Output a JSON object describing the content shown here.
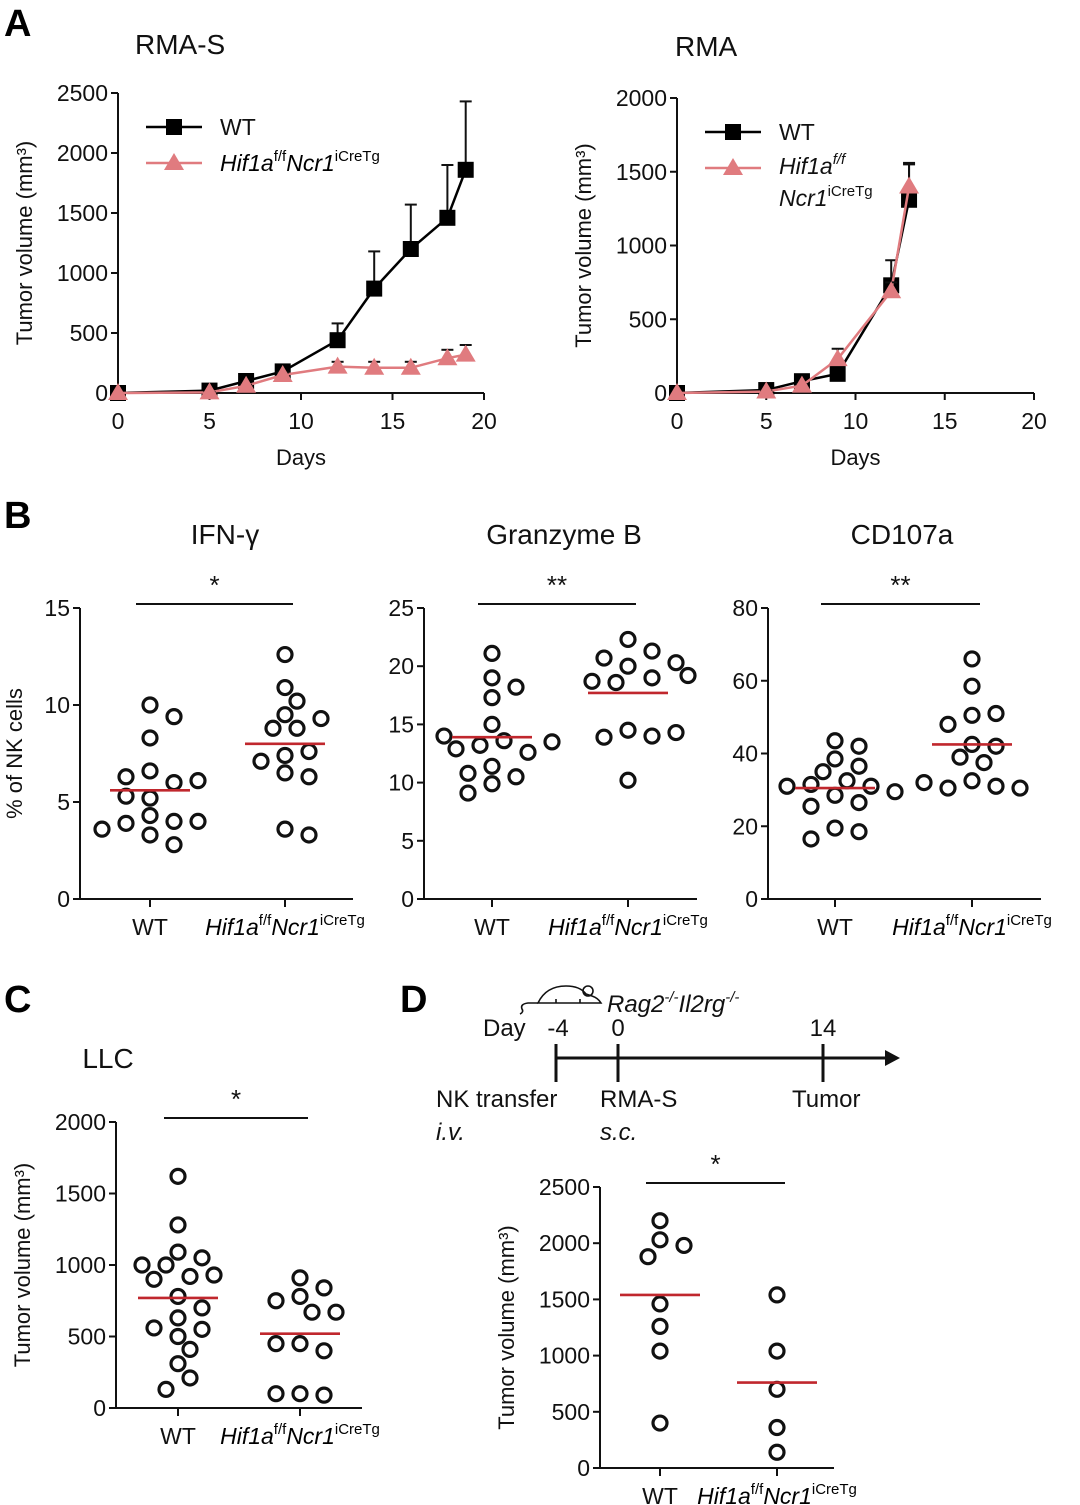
{
  "panels": {
    "A": {
      "letter": "A"
    },
    "B": {
      "letter": "B",
      "ylabel": "% of NK cells"
    },
    "C": {
      "letter": "C"
    },
    "D": {
      "letter": "D"
    }
  },
  "genotype_label": {
    "main": "Hif1a",
    "sup1": "f/f",
    "main2": "Ncr1",
    "sup2": "iCreTg"
  },
  "colors": {
    "wt": "#000000",
    "ko": "#e07b7f",
    "mean_line": "#c0272d"
  },
  "timeline": {
    "day_label": "Day",
    "mouse_strain": {
      "main": "Rag2",
      "sup1": "-/-",
      "main2": "Il2rg",
      "sup2": "-/-"
    },
    "events": [
      {
        "day": "-4",
        "label": "NK transfer",
        "route": "i.v."
      },
      {
        "day": "0",
        "label": "RMA-S",
        "route": "s.c."
      },
      {
        "day": "14",
        "label": "Tumor",
        "route": ""
      }
    ]
  },
  "chart_data": [
    {
      "id": "A-RMA-S",
      "type": "line",
      "title": "RMA-S",
      "xlabel": "Days",
      "ylabel": "Tumor volume (mm³)",
      "xlim": [
        0,
        20
      ],
      "ylim": [
        0,
        2500
      ],
      "xticks": [
        0,
        5,
        10,
        15,
        20
      ],
      "yticks": [
        0,
        500,
        1000,
        1500,
        2000,
        2500
      ],
      "legend": "top-left",
      "series": [
        {
          "name": "WT",
          "marker": "square",
          "color": "#000000",
          "x": [
            0,
            5,
            7,
            9,
            12,
            14,
            16,
            18,
            19
          ],
          "y": [
            0,
            20,
            100,
            180,
            440,
            870,
            1200,
            1460,
            1860
          ],
          "err": [
            0,
            10,
            20,
            30,
            140,
            310,
            370,
            440,
            570
          ]
        },
        {
          "name": "Hif1a f/f Ncr1 iCreTg",
          "marker": "triangle",
          "color": "#e07b7f",
          "x": [
            0,
            5,
            7,
            9,
            12,
            14,
            16,
            18,
            19
          ],
          "y": [
            0,
            5,
            60,
            150,
            220,
            210,
            210,
            290,
            320
          ],
          "err": [
            0,
            5,
            10,
            20,
            40,
            50,
            50,
            70,
            80
          ]
        }
      ]
    },
    {
      "id": "A-RMA",
      "type": "line",
      "title": "RMA",
      "xlabel": "Days",
      "ylabel": "Tumor volume (mm³)",
      "xlim": [
        0,
        20
      ],
      "ylim": [
        0,
        2000
      ],
      "xticks": [
        0,
        5,
        10,
        15,
        20
      ],
      "yticks": [
        0,
        500,
        1000,
        1500,
        2000
      ],
      "legend": "top-left",
      "series": [
        {
          "name": "WT",
          "marker": "square",
          "color": "#000000",
          "x": [
            0,
            5,
            7,
            9,
            12,
            13
          ],
          "y": [
            0,
            20,
            80,
            130,
            730,
            1310
          ],
          "err": [
            0,
            5,
            10,
            20,
            170,
            250
          ]
        },
        {
          "name": "Hif1a f/f Ncr1 iCreTg",
          "marker": "triangle",
          "color": "#e07b7f",
          "x": [
            0,
            5,
            7,
            9,
            12,
            13
          ],
          "y": [
            0,
            10,
            50,
            230,
            690,
            1400
          ],
          "err": [
            0,
            5,
            10,
            70,
            60,
            150
          ]
        }
      ]
    },
    {
      "id": "B-IFNg",
      "type": "scatter",
      "title": "IFN-γ",
      "ylabel": "% of NK cells",
      "ylim": [
        0,
        15
      ],
      "yticks": [
        0,
        5,
        10,
        15
      ],
      "categories": [
        "WT",
        "Hif1a f/f Ncr1 iCreTg"
      ],
      "significance": "*",
      "groups": [
        {
          "name": "WT",
          "mean": 5.6,
          "points": [
            10.0,
            9.4,
            8.3,
            6.6,
            6.0,
            6.3,
            6.1,
            5.2,
            5.3,
            4.3,
            4.0,
            3.9,
            4.0,
            3.6,
            3.3,
            2.8
          ]
        },
        {
          "name": "Hif1a f/f Ncr1 iCreTg",
          "mean": 8.0,
          "points": [
            12.6,
            10.9,
            10.2,
            9.5,
            8.8,
            8.8,
            9.3,
            7.4,
            7.6,
            7.1,
            6.5,
            6.3,
            3.6,
            3.3
          ]
        }
      ]
    },
    {
      "id": "B-GranzymeB",
      "type": "scatter",
      "title": "Granzyme B",
      "ylim": [
        0,
        25
      ],
      "yticks": [
        0,
        5,
        10,
        15,
        20,
        25
      ],
      "categories": [
        "WT",
        "Hif1a f/f Ncr1 iCreTg"
      ],
      "significance": "**",
      "groups": [
        {
          "name": "WT",
          "mean": 13.9,
          "points": [
            21.1,
            19.0,
            18.2,
            17.3,
            15.0,
            13.6,
            13.2,
            12.6,
            12.9,
            13.5,
            14.0,
            11.4,
            10.5,
            10.8,
            9.9,
            9.1
          ]
        },
        {
          "name": "Hif1a f/f Ncr1 iCreTg",
          "mean": 17.7,
          "points": [
            22.3,
            21.3,
            20.0,
            20.7,
            20.3,
            19.0,
            18.6,
            18.7,
            19.2,
            14.5,
            14.0,
            13.9,
            14.3,
            10.2
          ]
        }
      ]
    },
    {
      "id": "B-CD107a",
      "type": "scatter",
      "title": "CD107a",
      "ylim": [
        0,
        80
      ],
      "yticks": [
        0,
        20,
        40,
        60,
        80
      ],
      "categories": [
        "WT",
        "Hif1a f/f Ncr1 iCreTg"
      ],
      "significance": "**",
      "groups": [
        {
          "name": "WT",
          "mean": 30.5,
          "points": [
            43.5,
            42.0,
            38.5,
            36.5,
            35.0,
            32.5,
            31.5,
            31.0,
            31.0,
            29.5,
            28.5,
            26.5,
            25.5,
            19.5,
            18.5,
            16.5
          ]
        },
        {
          "name": "Hif1a f/f Ncr1 iCreTg",
          "mean": 42.5,
          "points": [
            66.0,
            58.5,
            50.5,
            51.0,
            48.0,
            42.5,
            42.0,
            39.0,
            37.5,
            32.5,
            31.0,
            30.5,
            30.5,
            32.0
          ]
        }
      ]
    },
    {
      "id": "C-LLC",
      "type": "scatter",
      "title": "LLC",
      "ylabel": "Tumor volume (mm³)",
      "ylim": [
        0,
        2000
      ],
      "yticks": [
        0,
        500,
        1000,
        1500,
        2000
      ],
      "categories": [
        "WT",
        "Hif1a f/f Ncr1 iCreTg"
      ],
      "significance": "*",
      "groups": [
        {
          "name": "WT",
          "mean": 770,
          "points": [
            1620,
            1280,
            1090,
            1050,
            1000,
            1000,
            920,
            900,
            930,
            780,
            700,
            630,
            550,
            500,
            560,
            410,
            310,
            210,
            130
          ]
        },
        {
          "name": "Hif1a f/f Ncr1 iCreTg",
          "mean": 520,
          "points": [
            910,
            840,
            780,
            750,
            670,
            670,
            450,
            400,
            450,
            100,
            90,
            100
          ]
        }
      ]
    },
    {
      "id": "D-RMA-S-transfer",
      "type": "scatter",
      "ylabel": "Tumor volume (mm³)",
      "ylim": [
        0,
        2500
      ],
      "yticks": [
        0,
        500,
        1000,
        1500,
        2000,
        2500
      ],
      "categories": [
        "WT",
        "Hif1a f/f Ncr1 iCreTg"
      ],
      "significance": "*",
      "groups": [
        {
          "name": "WT",
          "mean": 1540,
          "points": [
            2200,
            2030,
            1980,
            1880,
            1460,
            1260,
            1040,
            400
          ]
        },
        {
          "name": "Hif1a f/f Ncr1 iCreTg",
          "mean": 760,
          "points": [
            1540,
            1040,
            700,
            360,
            140
          ]
        }
      ]
    }
  ]
}
